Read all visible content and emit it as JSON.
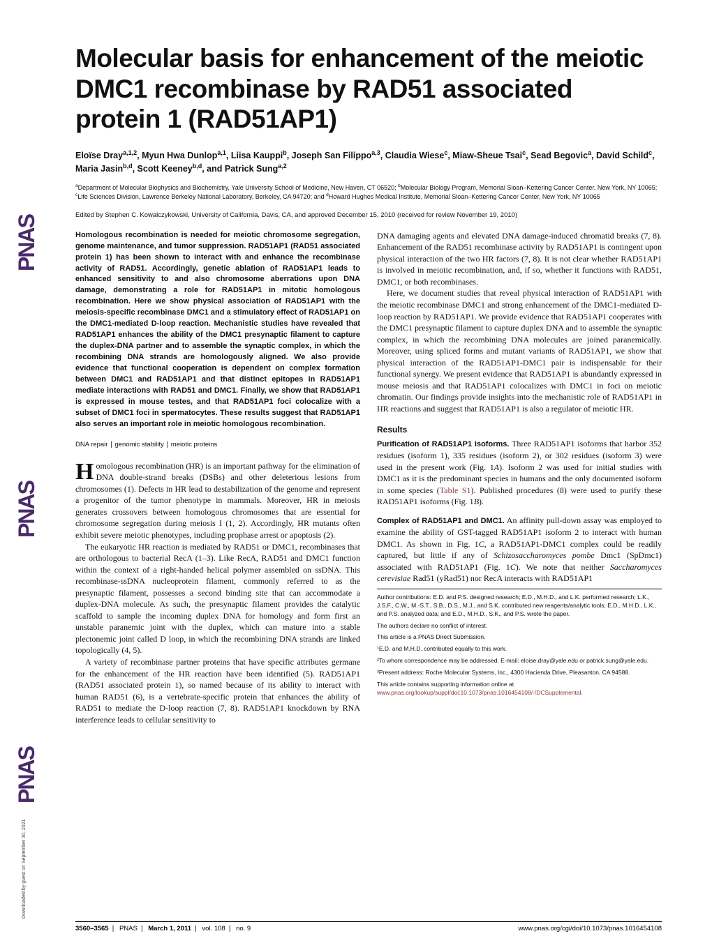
{
  "sidebar": {
    "logo_text": "PNAS",
    "downloaded": "Downloaded by guest on September 30, 2021"
  },
  "title": "Molecular basis for enhancement of the meiotic DMC1 recombinase by RAD51 associated protein 1 (RAD51AP1)",
  "authors_html": "Eloïse Dray<sup>a,1,2</sup>, Myun Hwa Dunlop<sup>a,1</sup>, Liisa Kauppi<sup>b</sup>, Joseph San Filippo<sup>a,3</sup>, Claudia Wiese<sup>c</sup>, Miaw-Sheue Tsai<sup>c</sup>, Sead Begovic<sup>a</sup>, David Schild<sup>c</sup>, Maria Jasin<sup>b,d</sup>, Scott Keeney<sup>b,d</sup>, and Patrick Sung<sup>a,2</sup>",
  "affiliations_html": "<sup>a</sup>Department of Molecular Biophysics and Biochemistry, Yale University School of Medicine, New Haven, CT 06520; <sup>b</sup>Molecular Biology Program, Memorial Sloan–Kettering Cancer Center, New York, NY 10065; <sup>c</sup>Life Sciences Division, Lawrence Berkeley National Laboratory, Berkeley, CA 94720; and <sup>d</sup>Howard Hughes Medical Institute, Memorial Sloan–Kettering Cancer Center, New York, NY 10065",
  "edited_by": "Edited by Stephen C. Kowalczykowski, University of California, Davis, CA, and approved December 15, 2010 (received for review November 19, 2010)",
  "abstract": "Homologous recombination is needed for meiotic chromosome segregation, genome maintenance, and tumor suppression. RAD51AP1 (RAD51 associated protein 1) has been shown to interact with and enhance the recombinase activity of RAD51. Accordingly, genetic ablation of RAD51AP1 leads to enhanced sensitivity to and also chromosome aberrations upon DNA damage, demonstrating a role for RAD51AP1 in mitotic homologous recombination. Here we show physical association of RAD51AP1 with the meiosis-specific recombinase DMC1 and a stimulatory effect of RAD51AP1 on the DMC1-mediated D-loop reaction. Mechanistic studies have revealed that RAD51AP1 enhances the ability of the DMC1 presynaptic filament to capture the duplex-DNA partner and to assemble the synaptic complex, in which the recombining DNA strands are homologously aligned. We also provide evidence that functional cooperation is dependent on complex formation between DMC1 and RAD51AP1 and that distinct epitopes in RAD51AP1 mediate interactions with RAD51 and DMC1. Finally, we show that RAD51AP1 is expressed in mouse testes, and that RAD51AP1 foci colocalize with a subset of DMC1 foci in spermatocytes. These results suggest that RAD51AP1 also serves an important role in meiotic homologous recombination.",
  "keywords": "DNA repair ∣ genomic stability ∣ meiotic proteins",
  "intro_p1": "Homologous recombination (HR) is an important pathway for the elimination of DNA double-strand breaks (DSBs) and other deleterious lesions from chromosomes (1). Defects in HR lead to destabilization of the genome and represent a progenitor of the tumor phenotype in mammals. Moreover, HR in meiosis generates crossovers between homologous chromosomes that are essential for chromosome segregation during meiosis I (1, 2). Accordingly, HR mutants often exhibit severe meiotic phenotypes, including prophase arrest or apoptosis (2).",
  "intro_p2": "The eukaryotic HR reaction is mediated by RAD51 or DMC1, recombinases that are orthologous to bacterial RecA (1–3). Like RecA, RAD51 and DMC1 function within the context of a right-handed helical polymer assembled on ssDNA. This recombinase-ssDNA nucleoprotein filament, commonly referred to as the presynaptic filament, possesses a second binding site that can accommodate a duplex-DNA molecule. As such, the presynaptic filament provides the catalytic scaffold to sample the incoming duplex DNA for homology and form first an unstable paranemic joint with the duplex, which can mature into a stable plectonemic joint called D loop, in which the recombining DNA strands are linked topologically (4, 5).",
  "intro_p3": "A variety of recombinase partner proteins that have specific attributes germane for the enhancement of the HR reaction have been identified (5). RAD51AP1 (RAD51 associated protein 1), so named because of its ability to interact with human RAD51 (6), is a vertebrate-specific protein that enhances the ability of RAD51 to mediate the D-loop reaction (7, 8). RAD51AP1 knockdown by RNA interference leads to cellular sensitivity to",
  "intro_p4": "DNA damaging agents and elevated DNA damage-induced chromatid breaks (7, 8). Enhancement of the RAD51 recombinase activity by RAD51AP1 is contingent upon physical interaction of the two HR factors (7, 8). It is not clear whether RAD51AP1 is involved in meiotic recombination, and, if so, whether it functions with RAD51, DMC1, or both recombinases.",
  "intro_p5": "Here, we document studies that reveal physical interaction of RAD51AP1 with the meiotic recombinase DMC1 and strong enhancement of the DMC1-mediated D-loop reaction by RAD51AP1. We provide evidence that RAD51AP1 cooperates with the DMC1 presynaptic filament to capture duplex DNA and to assemble the synaptic complex, in which the recombining DNA molecules are joined paranemically. Moreover, using spliced forms and mutant variants of RAD51AP1, we show that physical interaction of the RAD51AP1-DMC1 pair is indispensable for their functional synergy. We present evidence that RAD51AP1 is abundantly expressed in mouse meiosis and that RAD51AP1 colocalizes with DMC1 in foci on meiotic chromatin. Our findings provide insights into the mechanistic role of RAD51AP1 in HR reactions and suggest that RAD51AP1 is also a regulator of meiotic HR.",
  "results_head": "Results",
  "results_sub1_head": "Purification of RAD51AP1 Isoforms.",
  "results_sub1_body_html": "Three RAD51AP1 isoforms that harbor 352 residues (isoform 1), 335 residues (isoform 2), or 302 residues (isoform 3) were used in the present work (Fig. 1<span class='italic'>A</span>). Isoform 2 was used for initial studies with DMC1 as it is the predominant species in humans and the only documented isoform in some species (<span class='link'>Table S1</span>). Published procedures (8) were used to purify these RAD51AP1 isoforms (Fig. 1<span class='italic'>B</span>).",
  "results_sub2_head": "Complex of RAD51AP1 and DMC1.",
  "results_sub2_body_html": "An affinity pull-down assay was employed to examine the ability of GST-tagged RAD51AP1 isoform 2 to interact with human DMC1. As shown in Fig. 1<span class='italic'>C</span>, a RAD51AP1-DMC1 complex could be readily captured, but little if any of <span class='italic'>Schizosaccharomyces pombe</span> Dmc1 (SpDmc1) associated with RAD51AP1 (Fig. 1<span class='italic'>C</span>). We note that neither <span class='italic'>Saccharomyces cerevisiae</span> Rad51 (yRad51) nor RecA interacts with RAD51AP1",
  "footer_notes": {
    "contrib": "Author contributions: E.D. and P.S. designed research; E.D., M.H.D., and L.K. performed research; L.K., J.S.F., C.W., M.-S.T., S.B., D.S., M.J., and S.K. contributed new reagents/analytic tools; E.D., M.H.D., L.K., and P.S. analyzed data; and E.D., M.H.D., S.K., and P.S. wrote the paper.",
    "conflict": "The authors declare no conflict of interest.",
    "direct": "This article is a PNAS Direct Submission.",
    "equal": "¹E.D. and M.H.D. contributed equally to this work.",
    "corresp": "²To whom correspondence may be addressed. E-mail: eloise.dray@yale.edu or patrick.sung@yale.edu.",
    "present": "³Present address: Roche Molecular Systems, Inc., 4300 Hacienda Drive, Pleasanton, CA 94588.",
    "supp_pre": "This article contains supporting information online at ",
    "supp_link": "www.pnas.org/lookup/suppl/doi:10.1073/pnas.1016454108/-/DCSupplemental."
  },
  "page_footer": {
    "pages": "3560–3565",
    "journal": "PNAS",
    "date": "March 1, 2011",
    "vol": "vol. 108",
    "no": "no. 9",
    "doi": "www.pnas.org/cgi/doi/10.1073/pnas.1016454108"
  }
}
